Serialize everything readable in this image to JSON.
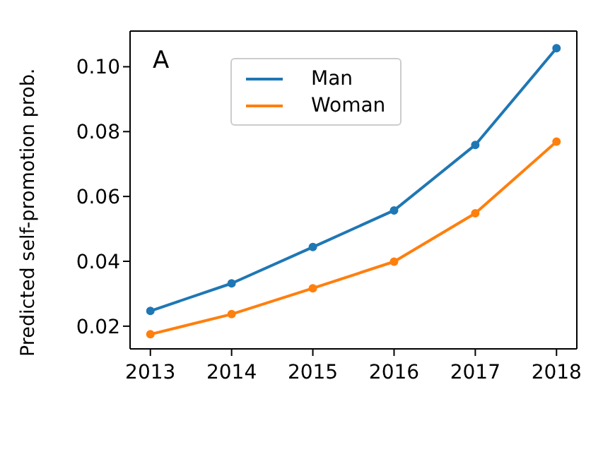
{
  "chart_data": {
    "type": "line",
    "ylabel": "Predicted self-promotion prob.",
    "annotations": [
      "A"
    ],
    "x": [
      2013,
      2014,
      2015,
      2016,
      2017,
      2018
    ],
    "xlim": [
      2012.75,
      2018.25
    ],
    "xticks": [
      2013,
      2014,
      2015,
      2016,
      2017,
      2018
    ],
    "ylim": [
      0.013,
      0.111
    ],
    "yticks": [
      {
        "value": 0.02,
        "label": "0.02"
      },
      {
        "value": 0.04,
        "label": "0.04"
      },
      {
        "value": 0.06,
        "label": "0.06"
      },
      {
        "value": 0.08,
        "label": "0.08"
      },
      {
        "value": 0.1,
        "label": "0.10"
      }
    ],
    "series": [
      {
        "name": "Man",
        "color": "#1f77b4",
        "values": [
          0.0247,
          0.0332,
          0.0444,
          0.0557,
          0.0759,
          0.1057
        ]
      },
      {
        "name": "Woman",
        "color": "#ff7f0e",
        "values": [
          0.0175,
          0.0237,
          0.0317,
          0.0399,
          0.0548,
          0.0769
        ]
      }
    ],
    "marker": "circle",
    "legend": "top",
    "grid": false
  }
}
